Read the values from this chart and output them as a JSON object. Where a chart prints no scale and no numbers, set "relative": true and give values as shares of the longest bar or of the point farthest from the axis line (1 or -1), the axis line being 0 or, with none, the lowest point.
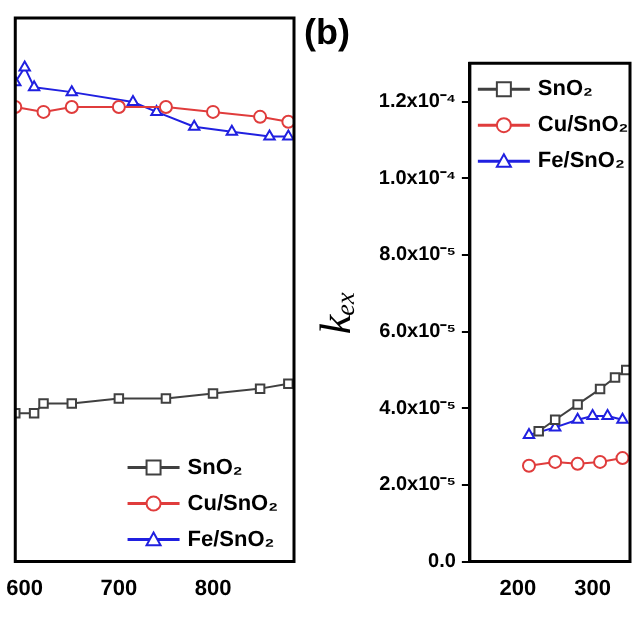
{
  "chart_data": [
    {
      "type": "line",
      "relative": true,
      "xlim": [
        590,
        886
      ],
      "xticks": [
        600,
        700,
        800
      ],
      "legend": "bottom right",
      "grid": false,
      "series": [
        {
          "name": "SnO₂",
          "color": "#404040",
          "marker": "square",
          "x": [
            590,
            610,
            620,
            650,
            700,
            750,
            800,
            850,
            880
          ],
          "values": [
            0.3,
            0.3,
            0.32,
            0.32,
            0.33,
            0.33,
            0.34,
            0.35,
            0.36
          ]
        },
        {
          "name": "Cu/SnO₂",
          "color": "#e03c3c",
          "marker": "circle",
          "x": [
            590,
            620,
            650,
            700,
            750,
            800,
            850,
            880
          ],
          "values": [
            0.92,
            0.91,
            0.92,
            0.92,
            0.92,
            0.91,
            0.9,
            0.89
          ]
        },
        {
          "name": "Fe/SnO₂",
          "color": "#2020e0",
          "marker": "triangle",
          "x": [
            590,
            600,
            610,
            650,
            715,
            740,
            780,
            820,
            860,
            880
          ],
          "values": [
            0.97,
            1.0,
            0.96,
            0.95,
            0.93,
            0.91,
            0.88,
            0.87,
            0.86,
            0.86
          ]
        }
      ]
    },
    {
      "type": "line",
      "title": "(b)",
      "ylabel": "kₑₓ",
      "xlim": [
        136,
        350
      ],
      "xticks": [
        200,
        300
      ],
      "ylim": [
        0,
        0.00013
      ],
      "yticks": [
        {
          "value": 0,
          "label": "0.0"
        },
        {
          "value": 2e-05,
          "label": "2.0x10⁻⁵"
        },
        {
          "value": 4e-05,
          "label": "4.0x10⁻⁵"
        },
        {
          "value": 6e-05,
          "label": "6.0x10⁻⁵"
        },
        {
          "value": 8e-05,
          "label": "8.0x10⁻⁵"
        },
        {
          "value": 0.0001,
          "label": "1.0x10⁻⁴"
        },
        {
          "value": 0.00012,
          "label": "1.2x10⁻⁴"
        }
      ],
      "legend": "top left",
      "grid": false,
      "series": [
        {
          "name": "SnO₂",
          "color": "#404040",
          "marker": "square",
          "x": [
            228,
            250,
            280,
            310,
            330,
            345
          ],
          "values": [
            3.4e-05,
            3.7e-05,
            4.1e-05,
            4.5e-05,
            4.8e-05,
            5e-05
          ]
        },
        {
          "name": "Cu/SnO₂",
          "color": "#e03c3c",
          "marker": "circle",
          "x": [
            215,
            250,
            280,
            310,
            340
          ],
          "values": [
            2.5e-05,
            2.6e-05,
            2.55e-05,
            2.6e-05,
            2.7e-05
          ]
        },
        {
          "name": "Fe/SnO₂",
          "color": "#2020e0",
          "marker": "triangle",
          "x": [
            215,
            250,
            280,
            300,
            320,
            340
          ],
          "values": [
            3.3e-05,
            3.5e-05,
            3.7e-05,
            3.8e-05,
            3.8e-05,
            3.7e-05
          ]
        }
      ]
    }
  ]
}
